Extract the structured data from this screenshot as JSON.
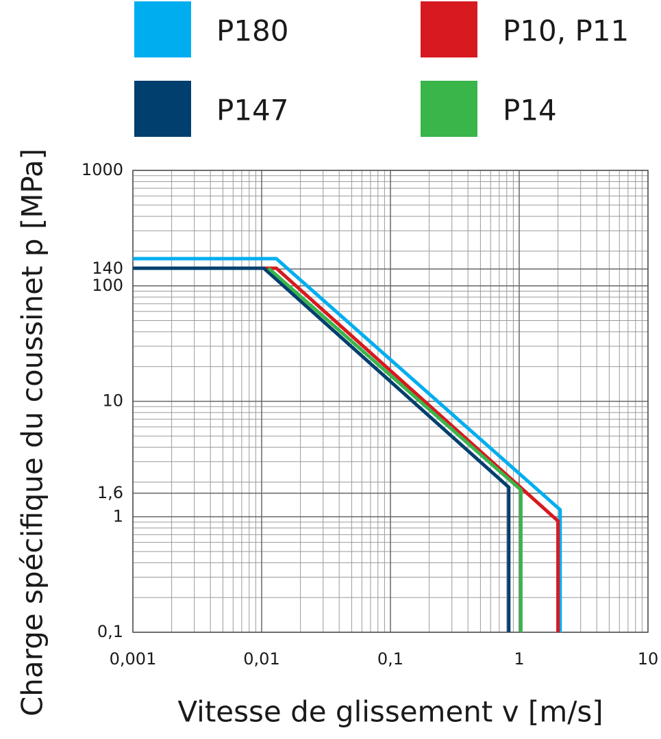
{
  "chart_data": {
    "type": "line",
    "x_label": "Vitesse de glissement v [m/s]",
    "y_label": "Charge spécifique du coussinet  p [MPa]",
    "log_x": true,
    "log_y": true,
    "grid": true,
    "xlim": [
      0.001,
      10
    ],
    "ylim": [
      0.1,
      1000
    ],
    "xticks": [
      {
        "value": 0.001,
        "label": "0,001"
      },
      {
        "value": 0.01,
        "label": "0,01"
      },
      {
        "value": 0.1,
        "label": "0,1"
      },
      1,
      10
    ],
    "yticks": [
      {
        "value": 0.1,
        "label": "0,1"
      },
      1,
      {
        "value": 1.6,
        "label": "1,6"
      },
      10,
      100,
      140,
      1000
    ],
    "series": [
      {
        "name": "P180",
        "color": "#00aeef",
        "x": [
          0.001,
          0.013,
          2.08,
          2.08
        ],
        "values": [
          172,
          172,
          1.15,
          0.1
        ]
      },
      {
        "name": "P10, P11",
        "color": "#d71920",
        "x": [
          0.001,
          0.013,
          2.0,
          2.0
        ],
        "values": [
          142,
          142,
          0.92,
          0.1
        ]
      },
      {
        "name": "P147",
        "color": "#003f6e",
        "x": [
          0.001,
          0.0104,
          0.83,
          0.83
        ],
        "values": [
          142,
          142,
          1.8,
          0.1
        ]
      },
      {
        "name": "P14",
        "color": "#39b54a",
        "x": [
          0.0113,
          0.0113,
          1.03,
          1.03
        ],
        "values": [
          142,
          142,
          1.71,
          0.1
        ]
      }
    ]
  }
}
